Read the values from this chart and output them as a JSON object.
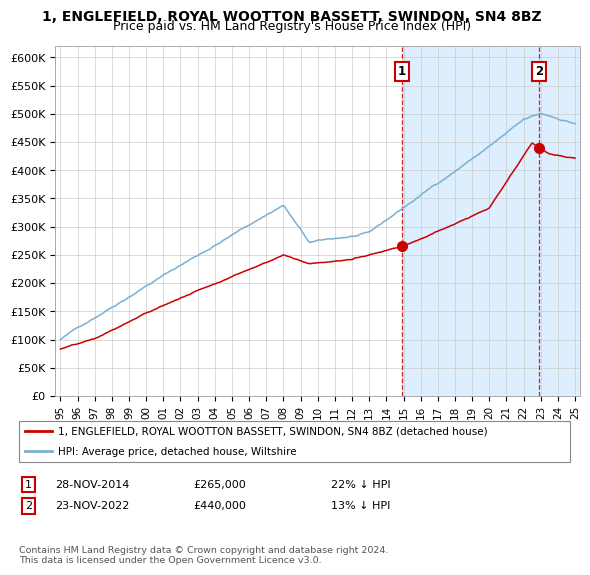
{
  "title": "1, ENGLEFIELD, ROYAL WOOTTON BASSETT, SWINDON, SN4 8BZ",
  "subtitle": "Price paid vs. HM Land Registry's House Price Index (HPI)",
  "ylim": [
    0,
    620000
  ],
  "yticks": [
    0,
    50000,
    100000,
    150000,
    200000,
    250000,
    300000,
    350000,
    400000,
    450000,
    500000,
    550000,
    600000
  ],
  "ytick_labels": [
    "£0",
    "£50K",
    "£100K",
    "£150K",
    "£200K",
    "£250K",
    "£300K",
    "£350K",
    "£400K",
    "£450K",
    "£500K",
    "£550K",
    "£600K"
  ],
  "hpi_color": "#7ab0d4",
  "price_color": "#cc0000",
  "bg_color": "#ddeeff",
  "purchase1_date": 2014.91,
  "purchase1_price": 265000,
  "purchase2_date": 2022.9,
  "purchase2_price": 440000,
  "legend_price_label": "1, ENGLEFIELD, ROYAL WOOTTON BASSETT, SWINDON, SN4 8BZ (detached house)",
  "legend_hpi_label": "HPI: Average price, detached house, Wiltshire",
  "annotation1_label": "1",
  "annotation2_label": "2",
  "table_row1": [
    "1",
    "28-NOV-2014",
    "£265,000",
    "22% ↓ HPI"
  ],
  "table_row2": [
    "2",
    "23-NOV-2022",
    "£440,000",
    "13% ↓ HPI"
  ],
  "footnote": "Contains HM Land Registry data © Crown copyright and database right 2024.\nThis data is licensed under the Open Government Licence v3.0.",
  "title_fontsize": 10,
  "subtitle_fontsize": 9
}
